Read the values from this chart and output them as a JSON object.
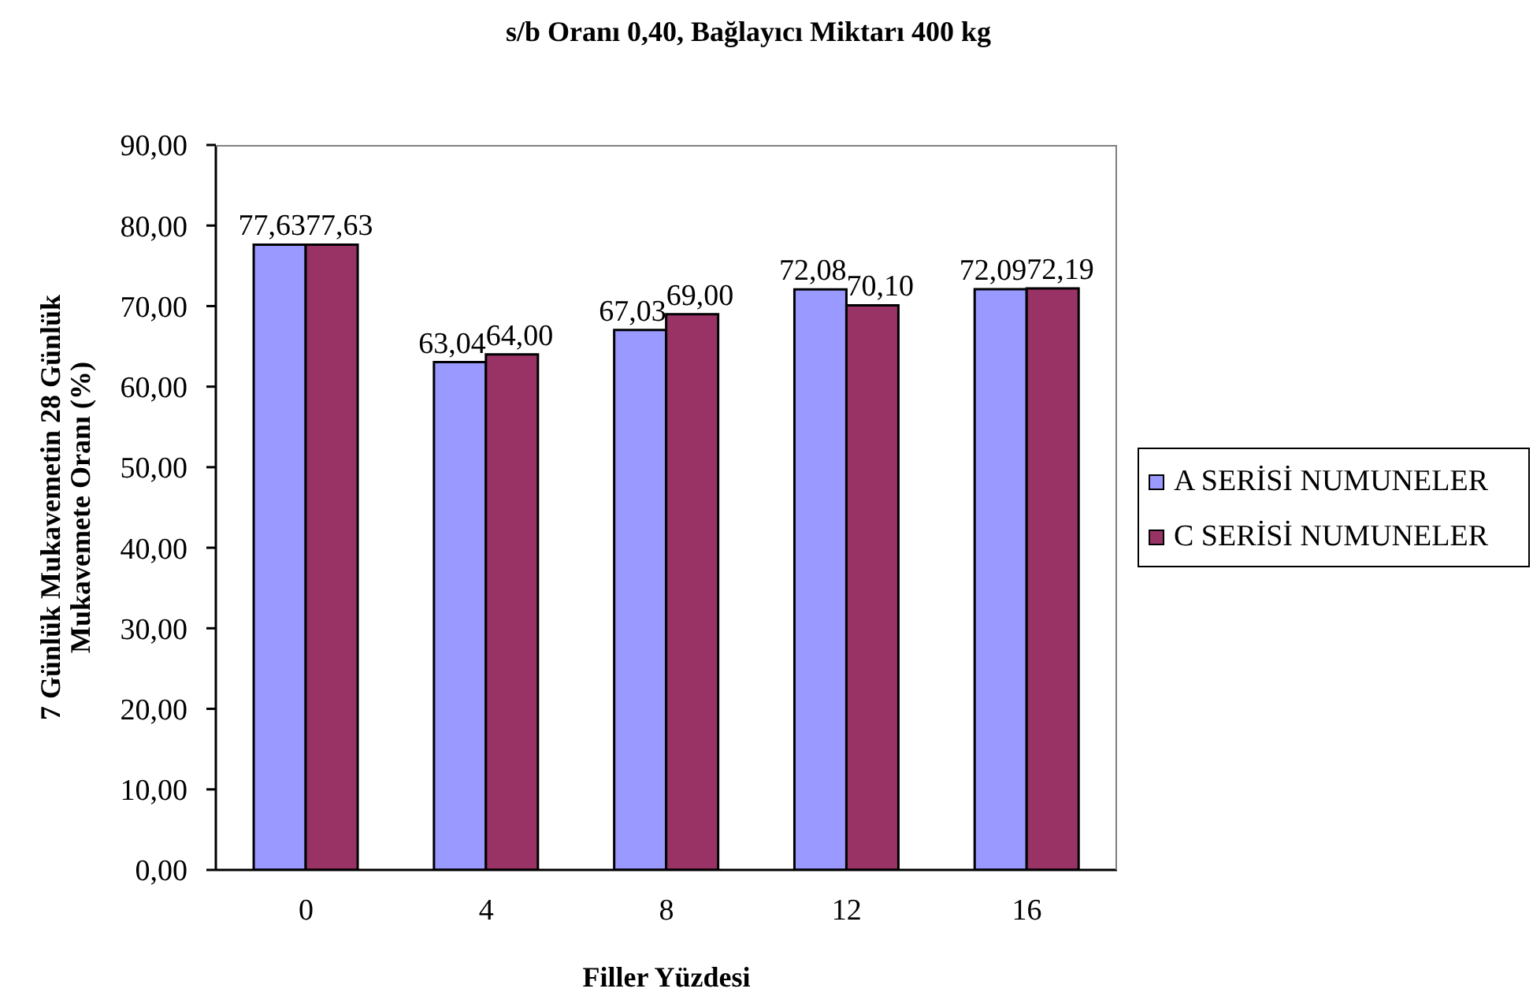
{
  "chart_data": {
    "type": "bar",
    "title": "s/b Oranı 0,40, Bağlayıcı Miktarı 400 kg",
    "xlabel": "Filler Yüzdesi",
    "ylabel": "7 Günlük Mukavemetin 28 Günlük Mukavemete Oranı (%)",
    "categories": [
      "0",
      "4",
      "8",
      "12",
      "16"
    ],
    "series": [
      {
        "name": "A SERİSİ NUMUNELER",
        "color": "#9999ff",
        "values": [
          77.63,
          63.04,
          67.03,
          72.08,
          72.09
        ],
        "value_labels": [
          "77,63",
          "63,04",
          "67,03",
          "72,08",
          "72,09"
        ]
      },
      {
        "name": "C SERİSİ NUMUNELER",
        "color": "#993366",
        "values": [
          77.63,
          64.0,
          69.0,
          70.1,
          72.19
        ],
        "value_labels": [
          "77,63",
          "64,00",
          "69,00",
          "70,10",
          "72,19"
        ]
      }
    ],
    "ylim": [
      0,
      90
    ],
    "yticks": [
      {
        "value": 0,
        "label": "0,00"
      },
      {
        "value": 10,
        "label": "10,00"
      },
      {
        "value": 20,
        "label": "20,00"
      },
      {
        "value": 30,
        "label": "30,00"
      },
      {
        "value": 40,
        "label": "40,00"
      },
      {
        "value": 50,
        "label": "50,00"
      },
      {
        "value": 60,
        "label": "60,00"
      },
      {
        "value": 70,
        "label": "70,00"
      },
      {
        "value": 80,
        "label": "80,00"
      },
      {
        "value": 90,
        "label": "90,00"
      }
    ],
    "legend": "right"
  }
}
